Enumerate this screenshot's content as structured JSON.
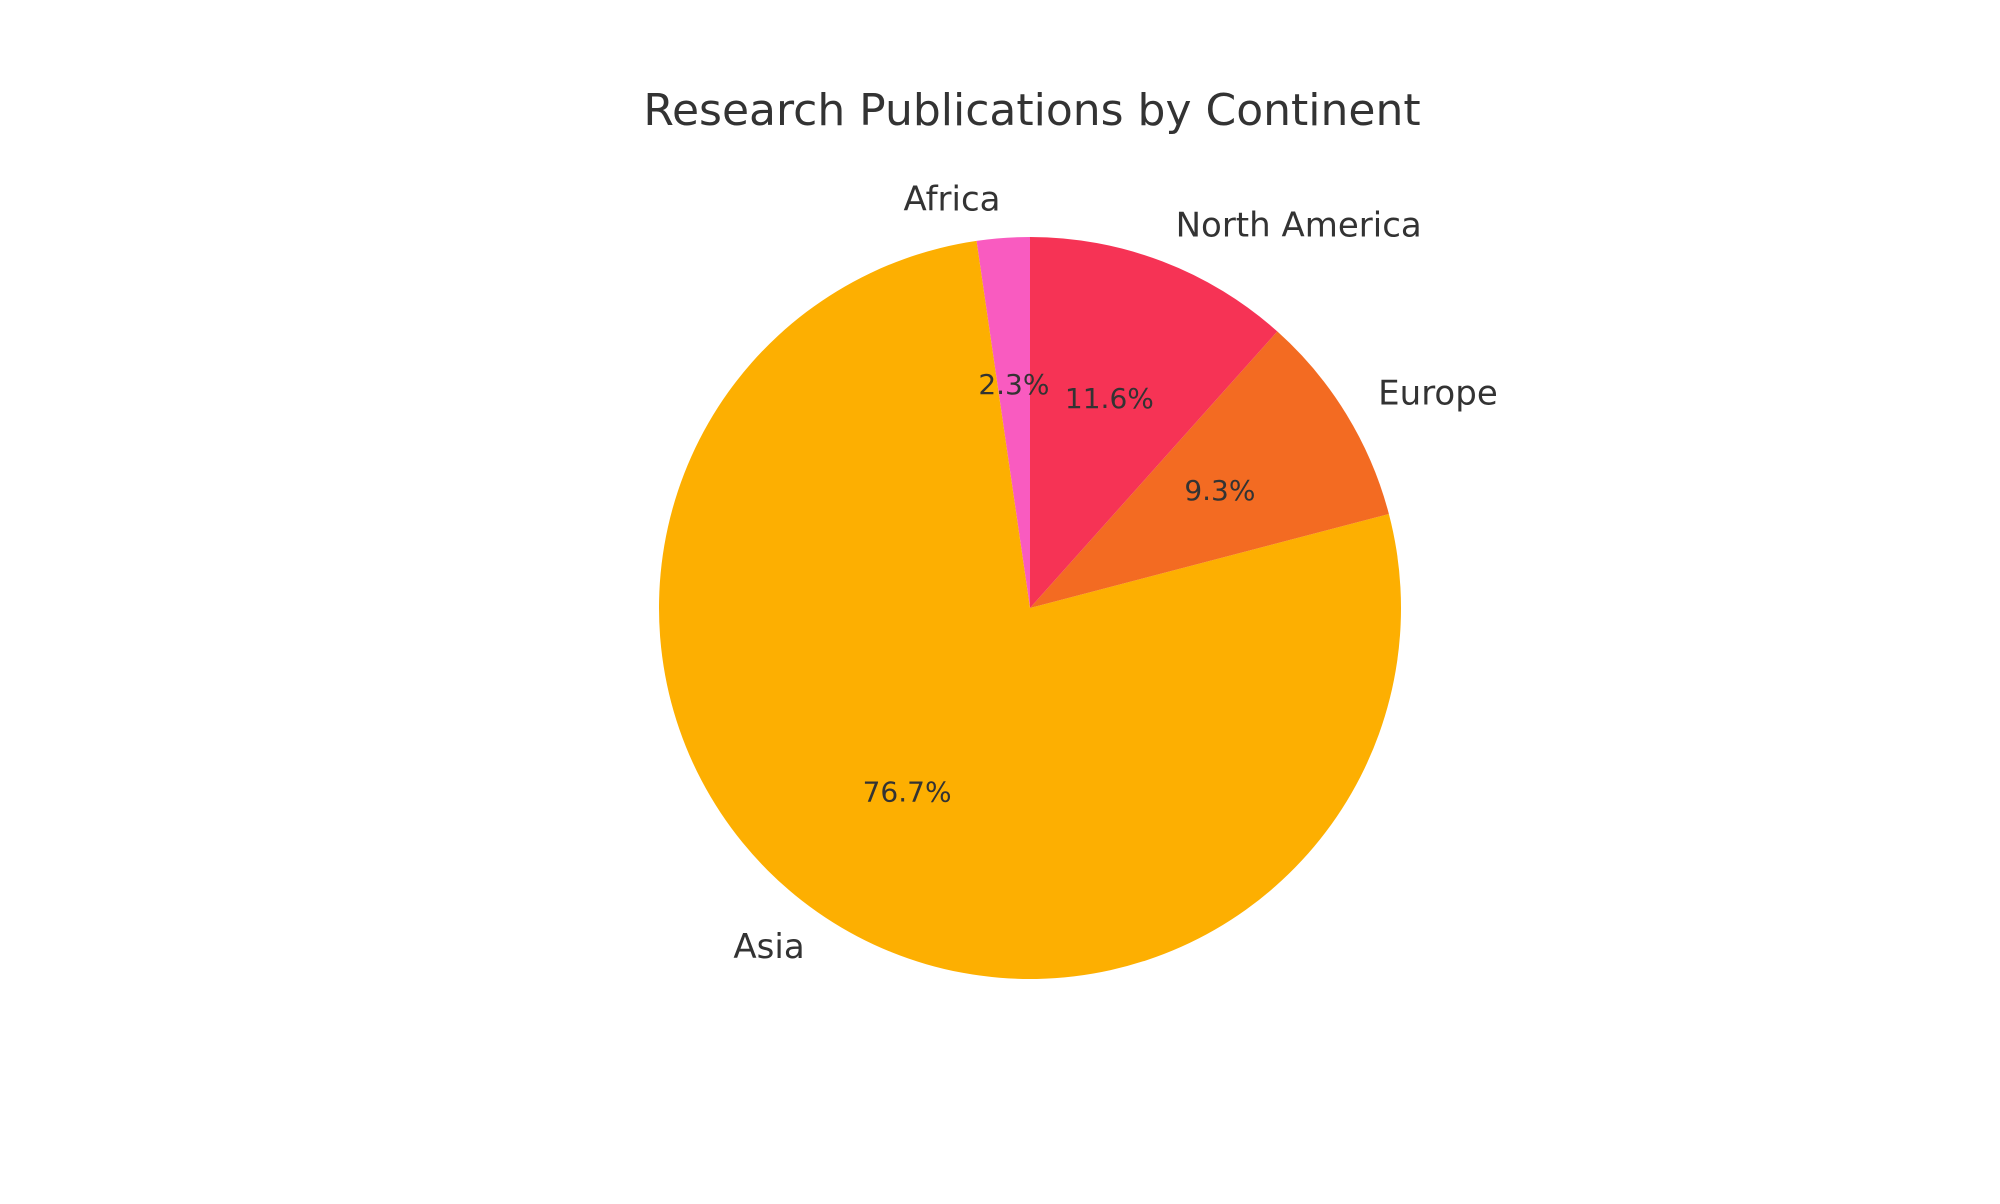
{
  "chart_data": {
    "type": "pie",
    "title": "Research Publications by Continent",
    "start_angle_deg": 90,
    "direction": "counterclockwise",
    "slices": [
      {
        "label": "Africa",
        "value": 2.3,
        "pct_label": "2.3%",
        "color": "#F95BC0"
      },
      {
        "label": "Asia",
        "value": 76.7,
        "pct_label": "76.7%",
        "color": "#FDAF01"
      },
      {
        "label": "Europe",
        "value": 9.3,
        "pct_label": "9.3%",
        "color": "#F36B22"
      },
      {
        "label": "North America",
        "value": 11.6,
        "pct_label": "11.6%",
        "color": "#F63355"
      }
    ]
  }
}
